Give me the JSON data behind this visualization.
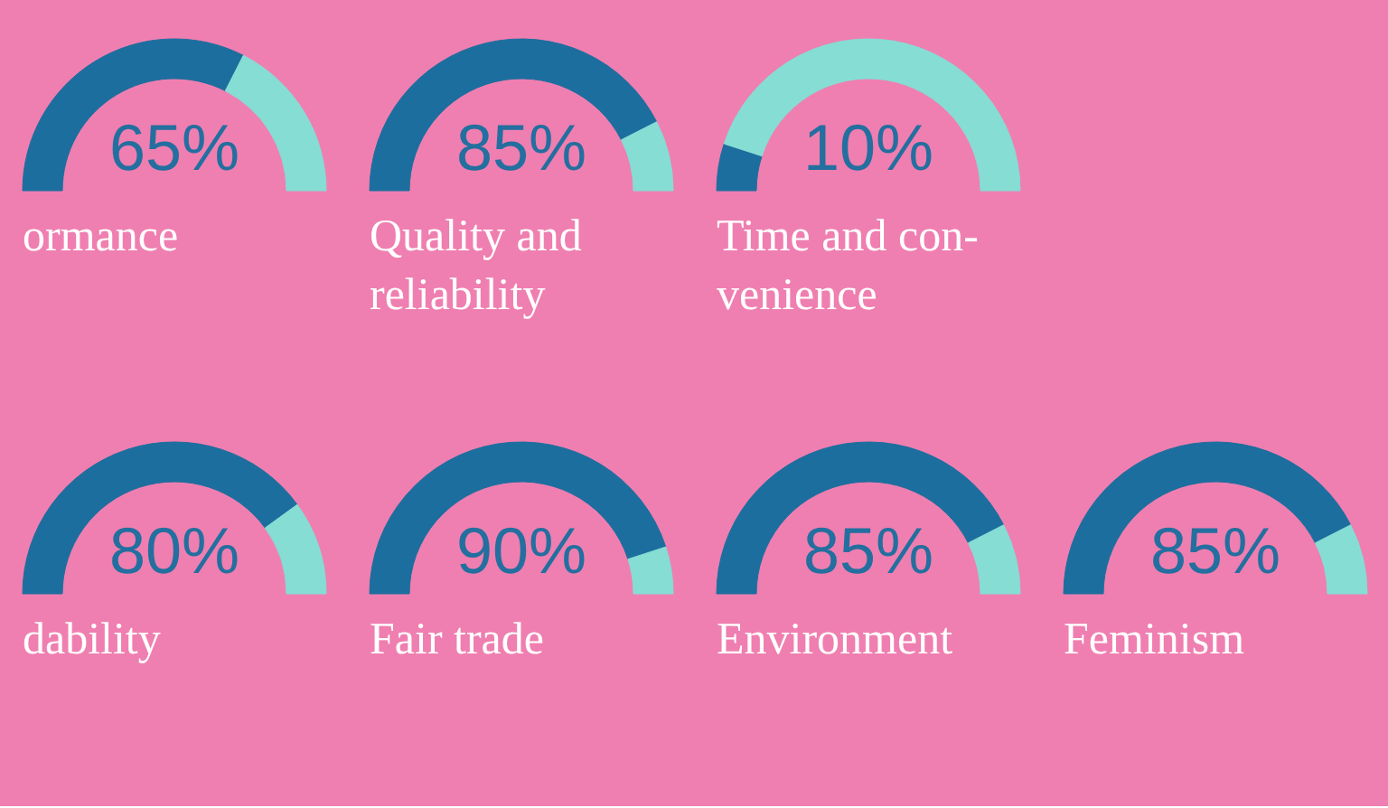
{
  "chart_data": [
    {
      "type": "donut",
      "title": "ormance",
      "categories": [
        null,
        null
      ],
      "values": [
        65,
        35
      ],
      "colors": [
        "#1c6e9e",
        "#86ddd4"
      ],
      "annotations": [
        "65%"
      ]
    },
    {
      "type": "donut",
      "title": "Quality and\nreliability",
      "categories": [
        null,
        null
      ],
      "values": [
        85,
        15
      ],
      "colors": [
        "#1c6e9e",
        "#86ddd4"
      ],
      "annotations": [
        "85%"
      ]
    },
    {
      "type": "donut",
      "title": "Time and con-\nvenience",
      "categories": [
        null,
        null
      ],
      "values": [
        10,
        90
      ],
      "colors": [
        "#1c6e9e",
        "#86ddd4"
      ],
      "annotations": [
        "10%"
      ]
    },
    {
      "type": "donut",
      "title": "dability",
      "categories": [
        null,
        null
      ],
      "values": [
        80,
        20
      ],
      "colors": [
        "#1c6e9e",
        "#86ddd4"
      ],
      "annotations": [
        "80%"
      ]
    },
    {
      "type": "donut",
      "title": "Fair trade",
      "categories": [
        null,
        null
      ],
      "values": [
        90,
        10
      ],
      "colors": [
        "#1c6e9e",
        "#86ddd4"
      ],
      "annotations": [
        "90%"
      ]
    },
    {
      "type": "donut",
      "title": "Environment",
      "categories": [
        null,
        null
      ],
      "values": [
        85,
        15
      ],
      "colors": [
        "#1c6e9e",
        "#86ddd4"
      ],
      "annotations": [
        "85%"
      ]
    },
    {
      "type": "donut",
      "title": "Feminism",
      "categories": [
        null,
        null
      ],
      "values": [
        85,
        15
      ],
      "colors": [
        "#1c6e9e",
        "#86ddd4"
      ],
      "annotations": [
        "85%"
      ]
    }
  ]
}
